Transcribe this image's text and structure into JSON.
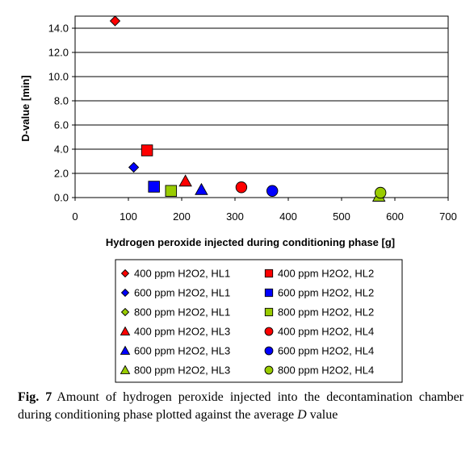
{
  "chart_data": {
    "type": "scatter",
    "xlabel": "Hydrogen peroxide injected during conditioning phase [g]",
    "ylabel": "D-value [min]",
    "xlim": [
      0,
      700
    ],
    "ylim": [
      0,
      15
    ],
    "x_ticks": [
      "0",
      "100",
      "200",
      "300",
      "400",
      "500",
      "600",
      "700"
    ],
    "y_ticks": [
      "0.0",
      "2.0",
      "4.0",
      "6.0",
      "8.0",
      "10.0",
      "12.0",
      "14.0"
    ],
    "grid": "horizontal",
    "legend_position": "bottom",
    "series": [
      {
        "name": "400 ppm H2O2, HL1",
        "marker": "diamond",
        "color": "#ff0000",
        "points": [
          {
            "x": 75,
            "y": 14.6
          }
        ]
      },
      {
        "name": "400 ppm H2O2, HL2",
        "marker": "square",
        "color": "#ff0000",
        "points": [
          {
            "x": 135,
            "y": 3.9
          }
        ]
      },
      {
        "name": "600 ppm H2O2, HL1",
        "marker": "diamond",
        "color": "#0000ff",
        "points": [
          {
            "x": 110,
            "y": 2.5
          }
        ]
      },
      {
        "name": "600 ppm H2O2, HL2",
        "marker": "square",
        "color": "#0000ff",
        "points": [
          {
            "x": 148,
            "y": 0.9
          }
        ]
      },
      {
        "name": "800 ppm H2O2, HL1",
        "marker": "diamond",
        "color": "#99cc00",
        "points": []
      },
      {
        "name": "800 ppm H2O2, HL2",
        "marker": "square",
        "color": "#99cc00",
        "points": [
          {
            "x": 180,
            "y": 0.55
          }
        ]
      },
      {
        "name": "400 ppm H2O2, HL3",
        "marker": "triangle",
        "color": "#ff0000",
        "points": [
          {
            "x": 207,
            "y": 1.35
          }
        ]
      },
      {
        "name": "400 ppm H2O2, HL4",
        "marker": "circle",
        "color": "#ff0000",
        "points": [
          {
            "x": 312,
            "y": 0.85
          }
        ]
      },
      {
        "name": "600 ppm H2O2, HL3",
        "marker": "triangle",
        "color": "#0000ff",
        "points": [
          {
            "x": 237,
            "y": 0.65
          }
        ]
      },
      {
        "name": "600 ppm H2O2, HL4",
        "marker": "circle",
        "color": "#0000ff",
        "points": [
          {
            "x": 370,
            "y": 0.55
          }
        ]
      },
      {
        "name": "800 ppm H2O2, HL3",
        "marker": "triangle",
        "color": "#99cc00",
        "points": [
          {
            "x": 570,
            "y": 0.1
          }
        ]
      },
      {
        "name": "800 ppm H2O2, HL4",
        "marker": "circle",
        "color": "#99cc00",
        "points": [
          {
            "x": 573,
            "y": 0.4
          }
        ]
      }
    ]
  },
  "caption": {
    "label": "Fig. 7",
    "text_main": "Amount of hydrogen peroxide injected into the decontamination chamber during conditioning phase plotted against the average ",
    "text_italic": "D",
    "text_end": " value"
  }
}
